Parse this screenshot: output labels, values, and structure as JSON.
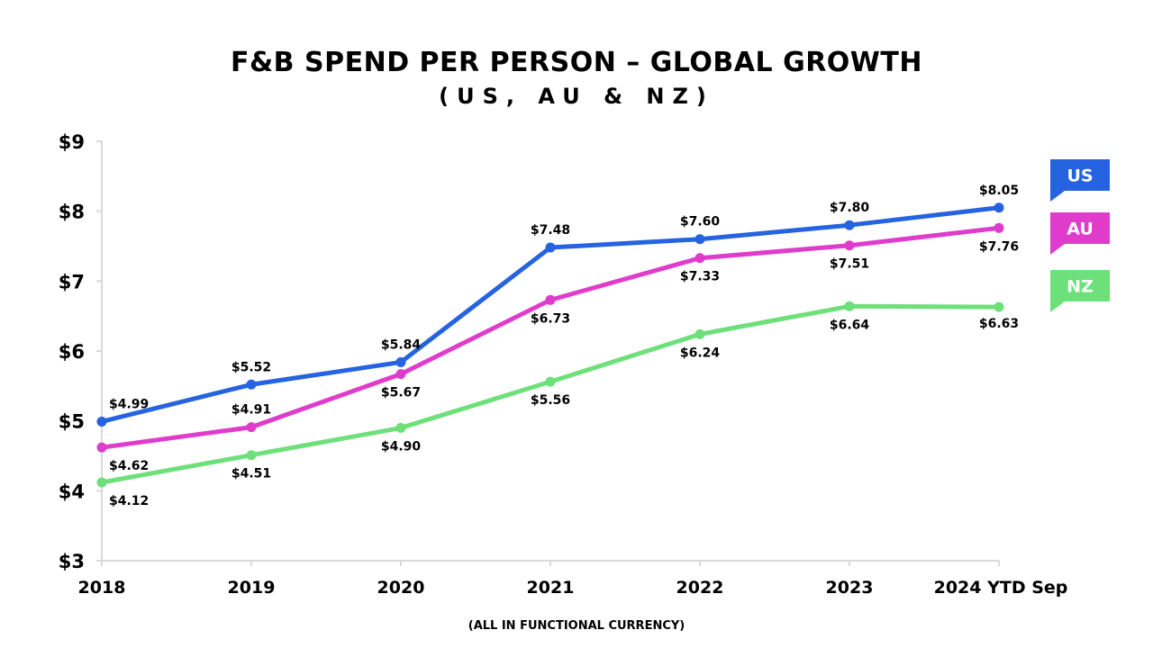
{
  "chart_data": {
    "type": "line",
    "title": "F&B SPEND PER PERSON – GLOBAL GROWTH",
    "subtitle": "(US, AU & NZ)",
    "footnote": "(ALL IN FUNCTIONAL CURRENCY)",
    "categories": [
      "2018",
      "2019",
      "2020",
      "2021",
      "2022",
      "2023",
      "2024 YTD Sep"
    ],
    "ylim": [
      3,
      9
    ],
    "yticks": [
      3,
      4,
      5,
      6,
      7,
      8,
      9
    ],
    "ytick_labels": [
      "$3",
      "$4",
      "$5",
      "$6",
      "$7",
      "$8",
      "$9"
    ],
    "xlabel": "",
    "ylabel": "",
    "grid": false,
    "legend_position": "right",
    "series": [
      {
        "name": "US",
        "color": "#2563e0",
        "values": [
          4.99,
          5.52,
          5.84,
          7.48,
          7.6,
          7.8,
          8.05
        ],
        "labels": [
          "$4.99",
          "$5.52",
          "$5.84",
          "$7.48",
          "$7.60",
          "$7.80",
          "$8.05"
        ]
      },
      {
        "name": "AU",
        "color": "#e03ccc",
        "values": [
          4.62,
          4.91,
          5.67,
          6.73,
          7.33,
          7.51,
          7.76
        ],
        "labels": [
          "$4.62",
          "$4.91",
          "$5.67",
          "$6.73",
          "$7.33",
          "$7.51",
          "$7.76"
        ]
      },
      {
        "name": "NZ",
        "color": "#6ee07a",
        "values": [
          4.12,
          4.51,
          4.9,
          5.56,
          6.24,
          6.64,
          6.63
        ],
        "labels": [
          "$4.12",
          "$4.51",
          "$4.90",
          "$5.56",
          "$6.24",
          "$6.64",
          "$6.63"
        ]
      }
    ]
  }
}
